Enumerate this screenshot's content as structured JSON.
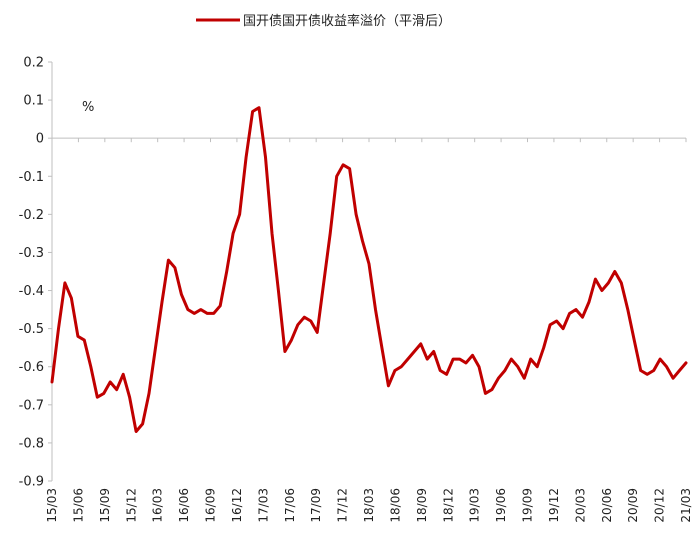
{
  "chart_data": {
    "type": "line",
    "legend": {
      "position": "top-center",
      "entries": [
        "国开债国开债收益率溢价（平滑后）"
      ]
    },
    "series": [
      {
        "name": "国开债国开债收益率溢价（平滑后）",
        "color": "#c00000",
        "values": [
          -0.64,
          -0.5,
          -0.38,
          -0.42,
          -0.52,
          -0.53,
          -0.6,
          -0.68,
          -0.67,
          -0.64,
          -0.66,
          -0.62,
          -0.68,
          -0.77,
          -0.75,
          -0.67,
          -0.55,
          -0.43,
          -0.32,
          -0.34,
          -0.41,
          -0.45,
          -0.46,
          -0.45,
          -0.46,
          -0.46,
          -0.44,
          -0.35,
          -0.25,
          -0.2,
          -0.05,
          0.07,
          0.08,
          -0.05,
          -0.25,
          -0.4,
          -0.56,
          -0.53,
          -0.49,
          -0.47,
          -0.48,
          -0.51,
          -0.38,
          -0.25,
          -0.1,
          -0.07,
          -0.08,
          -0.2,
          -0.27,
          -0.33,
          -0.45,
          -0.55,
          -0.65,
          -0.61,
          -0.6,
          -0.58,
          -0.56,
          -0.54,
          -0.58,
          -0.56,
          -0.61,
          -0.62,
          -0.58,
          -0.58,
          -0.59,
          -0.57,
          -0.6,
          -0.67,
          -0.66,
          -0.63,
          -0.61,
          -0.58,
          -0.6,
          -0.63,
          -0.58,
          -0.6,
          -0.55,
          -0.49,
          -0.48,
          -0.5,
          -0.46,
          -0.45,
          -0.47,
          -0.43,
          -0.37,
          -0.4,
          -0.38,
          -0.35,
          -0.38,
          -0.45,
          -0.53,
          -0.61,
          -0.62,
          -0.61,
          -0.58,
          -0.6,
          -0.63,
          -0.61,
          -0.59
        ],
        "x_ticks": [
          "15/03",
          "15/06",
          "15/09",
          "15/12",
          "16/03",
          "16/06",
          "16/09",
          "16/12",
          "17/03",
          "17/06",
          "17/09",
          "17/12",
          "18/03",
          "18/06",
          "18/09",
          "18/12",
          "19/03",
          "19/06",
          "19/09",
          "19/12",
          "20/03",
          "20/06",
          "20/09",
          "20/12",
          "21/03"
        ]
      }
    ],
    "y_unit": "%",
    "ylim": [
      -0.9,
      0.2
    ],
    "y_ticks": [
      "0.2",
      "0.1",
      "0",
      "-0.1",
      "-0.2",
      "-0.3",
      "-0.4",
      "-0.5",
      "-0.6",
      "-0.7",
      "-0.8",
      "-0.9"
    ],
    "title": "",
    "xlabel": "",
    "ylabel": ""
  }
}
